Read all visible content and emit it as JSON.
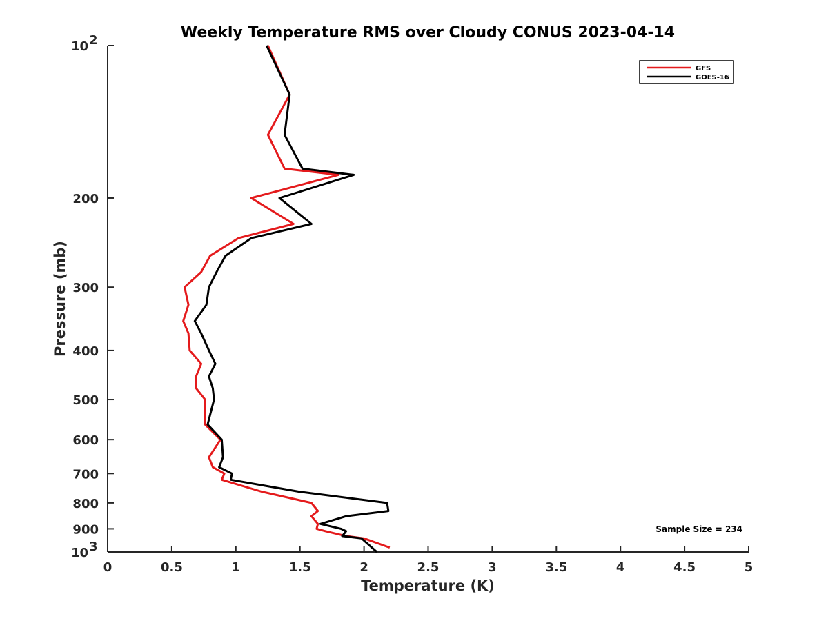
{
  "chart_data": {
    "type": "line",
    "title": "Weekly Temperature RMS over Cloudy CONUS 2023-04-14",
    "xlabel": "Temperature (K)",
    "ylabel": "Pressure (mb)",
    "xlim": [
      0,
      5
    ],
    "ylim": [
      100,
      1000
    ],
    "yscale": "log",
    "yreversed": true,
    "grid": false,
    "x_ticks": [
      0,
      0.5,
      1,
      1.5,
      2,
      2.5,
      3,
      3.5,
      4,
      4.5,
      5
    ],
    "x_tick_labels": [
      "0",
      "0.5",
      "1",
      "1.5",
      "2",
      "2.5",
      "3",
      "3.5",
      "4",
      "4.5",
      "5"
    ],
    "y_ticks": [
      {
        "value": 100,
        "label": "10",
        "sup": "2"
      },
      {
        "value": 200,
        "label": "200",
        "sup": ""
      },
      {
        "value": 300,
        "label": "300",
        "sup": ""
      },
      {
        "value": 400,
        "label": "400",
        "sup": ""
      },
      {
        "value": 500,
        "label": "500",
        "sup": ""
      },
      {
        "value": 600,
        "label": "600",
        "sup": ""
      },
      {
        "value": 700,
        "label": "700",
        "sup": ""
      },
      {
        "value": 800,
        "label": "800",
        "sup": ""
      },
      {
        "value": 900,
        "label": "900",
        "sup": ""
      },
      {
        "value": 1000,
        "label": "10",
        "sup": "3"
      }
    ],
    "legend_position": "top-right",
    "annotation": "Sample Size = 234",
    "series": [
      {
        "name": "GFS",
        "color": "#e41a1c",
        "points": [
          [
            1.25,
            100
          ],
          [
            1.42,
            125
          ],
          [
            1.25,
            150
          ],
          [
            1.38,
            175
          ],
          [
            1.8,
            180
          ],
          [
            1.12,
            200
          ],
          [
            1.45,
            225
          ],
          [
            1.02,
            240
          ],
          [
            0.8,
            260
          ],
          [
            0.73,
            280
          ],
          [
            0.6,
            300
          ],
          [
            0.63,
            325
          ],
          [
            0.59,
            350
          ],
          [
            0.63,
            370
          ],
          [
            0.64,
            400
          ],
          [
            0.73,
            425
          ],
          [
            0.69,
            450
          ],
          [
            0.69,
            475
          ],
          [
            0.76,
            500
          ],
          [
            0.76,
            560
          ],
          [
            0.88,
            600
          ],
          [
            0.79,
            650
          ],
          [
            0.82,
            680
          ],
          [
            0.91,
            700
          ],
          [
            0.89,
            720
          ],
          [
            1.2,
            760
          ],
          [
            1.59,
            800
          ],
          [
            1.64,
            830
          ],
          [
            1.59,
            850
          ],
          [
            1.64,
            880
          ],
          [
            1.63,
            900
          ],
          [
            1.7,
            910
          ],
          [
            1.86,
            930
          ],
          [
            2.0,
            940
          ],
          [
            2.2,
            980
          ]
        ]
      },
      {
        "name": "GOES-16",
        "color": "#000000",
        "points": [
          [
            1.24,
            100
          ],
          [
            1.42,
            125
          ],
          [
            1.38,
            150
          ],
          [
            1.52,
            175
          ],
          [
            1.92,
            180
          ],
          [
            1.34,
            200
          ],
          [
            1.59,
            225
          ],
          [
            1.12,
            240
          ],
          [
            0.92,
            260
          ],
          [
            0.85,
            280
          ],
          [
            0.79,
            300
          ],
          [
            0.77,
            325
          ],
          [
            0.68,
            350
          ],
          [
            0.73,
            370
          ],
          [
            0.79,
            400
          ],
          [
            0.84,
            425
          ],
          [
            0.79,
            450
          ],
          [
            0.82,
            475
          ],
          [
            0.83,
            500
          ],
          [
            0.78,
            560
          ],
          [
            0.89,
            600
          ],
          [
            0.9,
            650
          ],
          [
            0.87,
            680
          ],
          [
            0.97,
            700
          ],
          [
            0.96,
            720
          ],
          [
            1.49,
            760
          ],
          [
            2.18,
            800
          ],
          [
            2.19,
            830
          ],
          [
            1.86,
            850
          ],
          [
            1.66,
            880
          ],
          [
            1.82,
            900
          ],
          [
            1.86,
            910
          ],
          [
            1.83,
            930
          ],
          [
            1.98,
            940
          ],
          [
            2.1,
            1000
          ]
        ]
      }
    ]
  }
}
